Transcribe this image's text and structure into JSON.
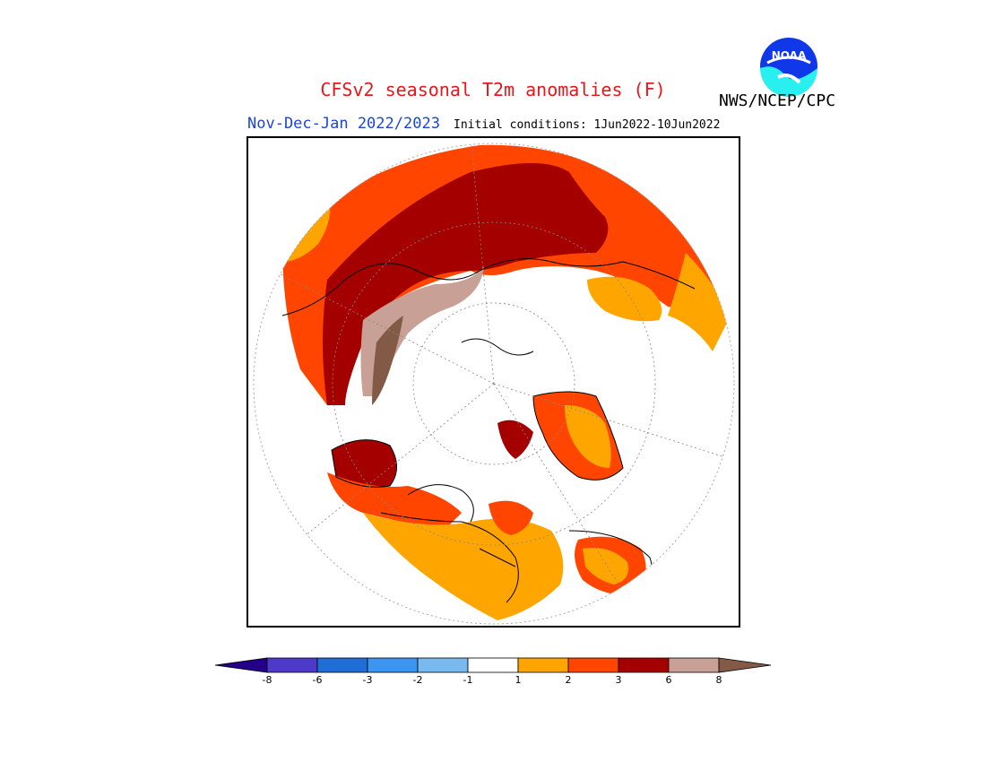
{
  "header": {
    "title": "CFSv2 seasonal T2m anomalies (F)",
    "agency": "NWS/NCEP/CPC",
    "period": "Nov-Dec-Jan 2022/2023",
    "initial_conditions": "Initial conditions: 1Jun2022-10Jun2022",
    "logo_text": "NOAA"
  },
  "legend": {
    "tick_labels": [
      "-8",
      "-6",
      "-3",
      "-2",
      "-1",
      "1",
      "2",
      "3",
      "6",
      "8"
    ],
    "colors": {
      "lt_neg8": "#24008a",
      "neg8_neg6": "#4d3ac8",
      "neg6_neg3": "#1e6ed6",
      "neg3_neg2": "#3c96f0",
      "neg2_neg1": "#78b9f0",
      "neg1_1": "#ffffff",
      "c1_2": "#ffa500",
      "c2_3": "#ff4500",
      "c3_6": "#a50000",
      "c6_8": "#c8a096",
      "gt_8": "#825a46"
    }
  },
  "map": {
    "projection": "polar stereographic (north pole)",
    "colors": {
      "coast": "#000000",
      "grid": "#888888"
    }
  }
}
